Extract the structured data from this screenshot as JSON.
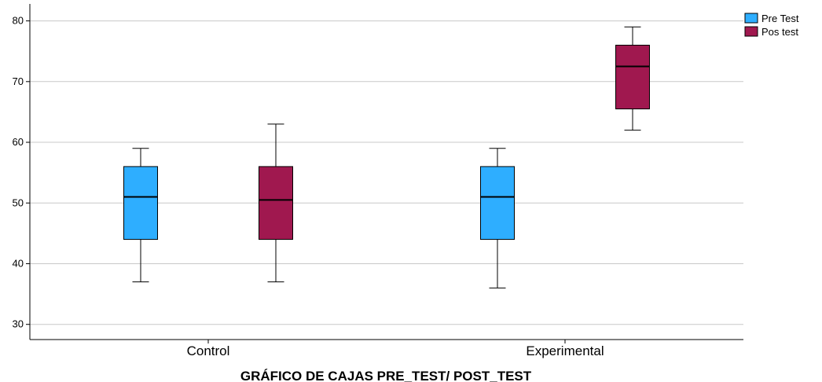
{
  "chart_data": {
    "type": "box",
    "title": "",
    "xlabel": "GRÁFICO DE CAJAS PRE_TEST/ POST_TEST",
    "ylabel": "",
    "ylim": [
      27.5,
      81.5
    ],
    "yticks": [
      30,
      40,
      50,
      60,
      70,
      80
    ],
    "grid": true,
    "legend_position": "top-right",
    "categories": [
      "Control",
      "Experimental"
    ],
    "series": [
      {
        "name": "Pre Test",
        "color": "#2eaeff",
        "boxes": [
          {
            "min": 37,
            "q1": 44,
            "median": 51,
            "q3": 56,
            "max": 59
          },
          {
            "min": 36,
            "q1": 44,
            "median": 51,
            "q3": 56,
            "max": 59
          }
        ]
      },
      {
        "name": "Pos test",
        "color": "#a0184f",
        "boxes": [
          {
            "min": 37,
            "q1": 44,
            "median": 50.5,
            "q3": 56,
            "max": 63
          },
          {
            "min": 62,
            "q1": 65.5,
            "median": 72.5,
            "q3": 76,
            "max": 79
          }
        ]
      }
    ]
  }
}
